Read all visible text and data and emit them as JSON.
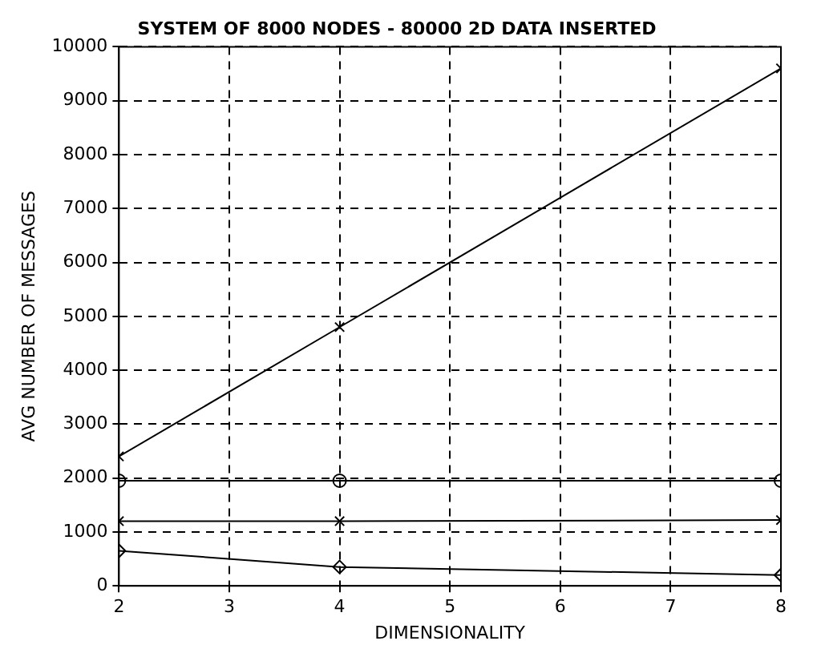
{
  "chart_data": {
    "type": "line",
    "title": "SYSTEM OF 8000 NODES - 80000 2D DATA INSERTED",
    "xlabel": "DIMENSIONALITY",
    "ylabel": "AVG NUMBER OF MESSAGES",
    "x": [
      2,
      4,
      8
    ],
    "series": [
      {
        "color": "#000000",
        "marker": "cross",
        "values": [
          2400,
          4800,
          9600
        ]
      },
      {
        "color": "#000000",
        "marker": "circle",
        "values": [
          1950,
          1950,
          1950
        ]
      },
      {
        "color": "#000000",
        "marker": "cross",
        "values": [
          1200,
          1200,
          1220
        ]
      },
      {
        "color": "#000000",
        "marker": "diamond",
        "values": [
          650,
          350,
          200
        ]
      }
    ],
    "xlim": [
      2,
      8
    ],
    "xticks": [
      2,
      3,
      4,
      5,
      6,
      7,
      8
    ],
    "ylim": [
      0,
      10000
    ],
    "yticks": [
      0,
      1000,
      2000,
      3000,
      4000,
      5000,
      6000,
      7000,
      8000,
      9000,
      10000
    ],
    "grid": true,
    "legend": false,
    "line_style": "solid"
  }
}
